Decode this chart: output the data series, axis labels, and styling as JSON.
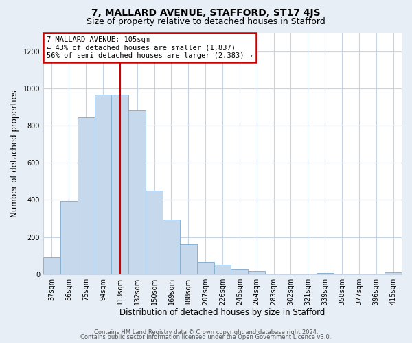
{
  "title": "7, MALLARD AVENUE, STAFFORD, ST17 4JS",
  "subtitle": "Size of property relative to detached houses in Stafford",
  "xlabel": "Distribution of detached houses by size in Stafford",
  "ylabel": "Number of detached properties",
  "categories": [
    "37sqm",
    "56sqm",
    "75sqm",
    "94sqm",
    "113sqm",
    "132sqm",
    "150sqm",
    "169sqm",
    "188sqm",
    "207sqm",
    "226sqm",
    "245sqm",
    "264sqm",
    "283sqm",
    "302sqm",
    "321sqm",
    "339sqm",
    "358sqm",
    "377sqm",
    "396sqm",
    "415sqm"
  ],
  "values": [
    90,
    395,
    845,
    965,
    965,
    880,
    450,
    295,
    160,
    65,
    50,
    30,
    18,
    0,
    0,
    0,
    8,
    0,
    0,
    0,
    10
  ],
  "bar_color": "#c5d8ec",
  "bar_edge_color": "#8ab0d0",
  "vline_index": 4,
  "vline_color": "#cc0000",
  "annotation_title": "7 MALLARD AVENUE: 105sqm",
  "annotation_line1": "← 43% of detached houses are smaller (1,837)",
  "annotation_line2": "56% of semi-detached houses are larger (2,383) →",
  "annotation_box_color": "#cc0000",
  "ylim": [
    0,
    1300
  ],
  "yticks": [
    0,
    200,
    400,
    600,
    800,
    1000,
    1200
  ],
  "footer1": "Contains HM Land Registry data © Crown copyright and database right 2024.",
  "footer2": "Contains public sector information licensed under the Open Government Licence v3.0.",
  "bg_color": "#e8eef5",
  "plot_bg_color": "#ffffff",
  "grid_color": "#c5d5e5",
  "title_fontsize": 10,
  "subtitle_fontsize": 9,
  "tick_fontsize": 7,
  "label_fontsize": 8.5,
  "footer_fontsize": 6
}
